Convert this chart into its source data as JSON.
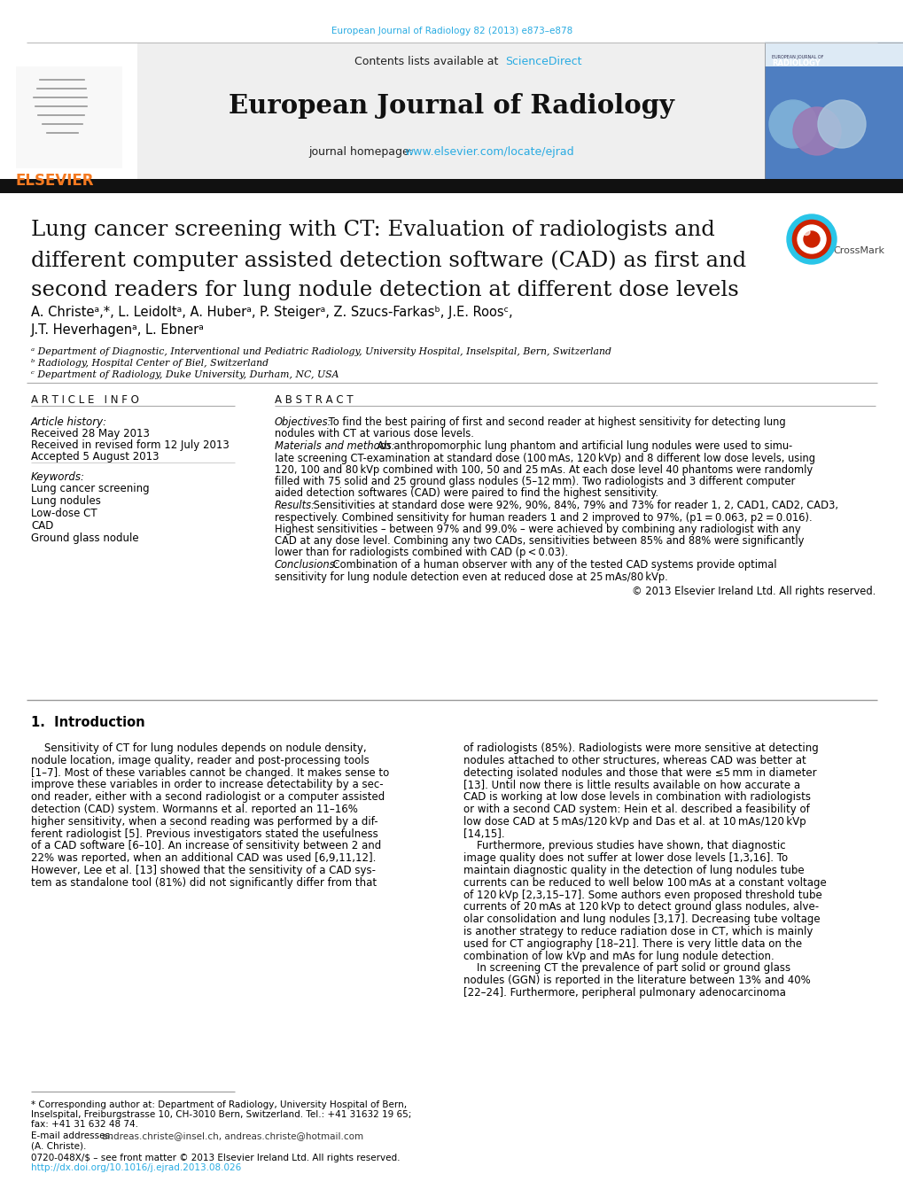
{
  "journal_url_text": "European Journal of Radiology 82 (2013) e873–e878",
  "journal_url_color": "#29ABE2",
  "sciencedirect_color": "#29ABE2",
  "homepage_color": "#29ABE2",
  "elsevier_color": "#F47920",
  "journal_name": "European Journal of Radiology",
  "homepage_url": "www.elsevier.com/locate/ejrad",
  "affil_a": "ᵃ Department of Diagnostic, Interventional und Pediatric Radiology, University Hospital, Inselspital, Bern, Switzerland",
  "affil_b": "ᵇ Radiology, Hospital Center of Biel, Switzerland",
  "affil_c": "ᶜ Department of Radiology, Duke University, Durham, NC, USA",
  "keywords": [
    "Lung cancer screening",
    "Lung nodules",
    "Low-dose CT",
    "CAD",
    "Ground glass nodule"
  ],
  "received1": "Received 28 May 2013",
  "received2": "Received in revised form 12 July 2013",
  "accepted": "Accepted 5 August 2013",
  "col1_lines": [
    "Sensitivity of CT for lung nodules depends on nodule density,",
    "nodule location, image quality, reader and post-processing tools",
    "[1–7]. Most of these variables cannot be changed. It makes sense to",
    "improve these variables in order to increase detectability by a sec-",
    "ond reader, either with a second radiologist or a computer assisted",
    "detection (CAD) system. Wormanns et al. reported an 11–16%",
    "higher sensitivity, when a second reading was performed by a dif-",
    "ferent radiologist [5]. Previous investigators stated the usefulness",
    "of a CAD software [6–10]. An increase of sensitivity between 2 and",
    "22% was reported, when an additional CAD was used [6,9,11,12].",
    "However, Lee et al. [13] showed that the sensitivity of a CAD sys-",
    "tem as standalone tool (81%) did not significantly differ from that"
  ],
  "col2_lines": [
    "of radiologists (85%). Radiologists were more sensitive at detecting",
    "nodules attached to other structures, whereas CAD was better at",
    "detecting isolated nodules and those that were ≤5 mm in diameter",
    "[13]. Until now there is little results available on how accurate a",
    "CAD is working at low dose levels in combination with radiologists",
    "or with a second CAD system: Hein et al. described a feasibility of",
    "low dose CAD at 5 mAs/120 kVp and Das et al. at 10 mAs/120 kVp",
    "[14,15].",
    "    Furthermore, previous studies have shown, that diagnostic",
    "image quality does not suffer at lower dose levels [1,3,16]. To",
    "maintain diagnostic quality in the detection of lung nodules tube",
    "currents can be reduced to well below 100 mAs at a constant voltage",
    "of 120 kVp [2,3,15–17]. Some authors even proposed threshold tube",
    "currents of 20 mAs at 120 kVp to detect ground glass nodules, alve-",
    "olar consolidation and lung nodules [3,17]. Decreasing tube voltage",
    "is another strategy to reduce radiation dose in CT, which is mainly",
    "used for CT angiography [18–21]. There is very little data on the",
    "combination of low kVp and mAs for lung nodule detection.",
    "    In screening CT the prevalence of part solid or ground glass",
    "nodules (GGN) is reported in the literature between 13% and 40%",
    "[22–24]. Furthermore, peripheral pulmonary adenocarcinoma"
  ],
  "bg_color": "#FFFFFF",
  "header_bg": "#EFEFEF",
  "bar_bg": "#4A7DB5",
  "footnote_doi_color": "#29ABE2"
}
